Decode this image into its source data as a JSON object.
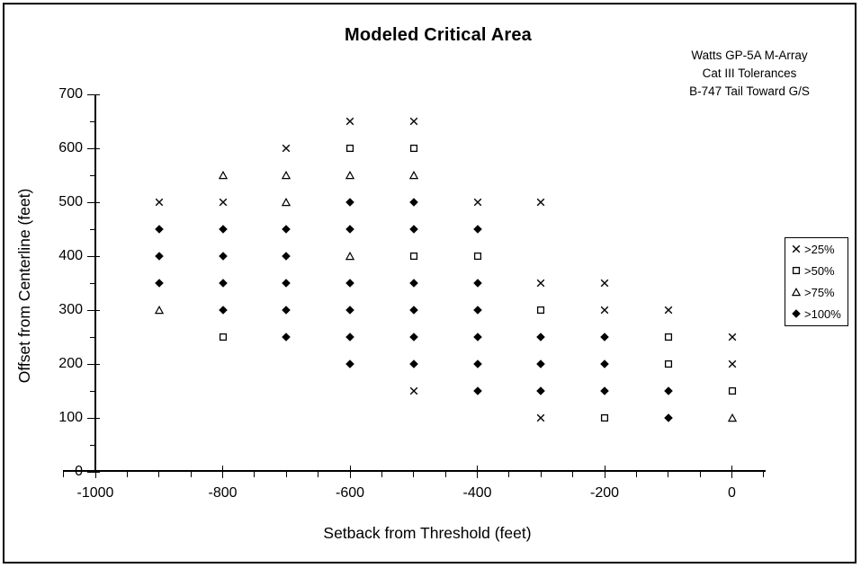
{
  "chart_data": {
    "type": "scatter",
    "title": "Modeled Critical Area",
    "xlabel": "Setback from Threshold (feet)",
    "ylabel": "Offset from Centerline (feet)",
    "annotation_lines": [
      "Watts GP-5A M-Array",
      "Cat III Tolerances",
      "B-747 Tail Toward G/S"
    ],
    "xlim": [
      -1050,
      50
    ],
    "ylim": [
      0,
      700
    ],
    "x_major_ticks": [
      -1000,
      -800,
      -600,
      -400,
      -200,
      0
    ],
    "x_minor_step": 50,
    "y_major_ticks": [
      0,
      100,
      200,
      300,
      400,
      500,
      600,
      700
    ],
    "y_minor_step": 50,
    "grid": false,
    "legend_position": "right",
    "marker_color": "#000000",
    "background_color": "#ffffff",
    "series": [
      {
        "name": ">25%",
        "marker": "cross",
        "points": [
          [
            -900,
            500
          ],
          [
            -800,
            500
          ],
          [
            -700,
            600
          ],
          [
            -600,
            650
          ],
          [
            -500,
            650
          ],
          [
            -500,
            150
          ],
          [
            -400,
            500
          ],
          [
            -300,
            500
          ],
          [
            -300,
            350
          ],
          [
            -300,
            100
          ],
          [
            -200,
            350
          ],
          [
            -200,
            300
          ],
          [
            -100,
            300
          ],
          [
            0,
            250
          ],
          [
            0,
            200
          ]
        ]
      },
      {
        "name": ">50%",
        "marker": "open-square",
        "points": [
          [
            -800,
            250
          ],
          [
            -600,
            600
          ],
          [
            -500,
            600
          ],
          [
            -500,
            400
          ],
          [
            -400,
            400
          ],
          [
            -300,
            300
          ],
          [
            -200,
            100
          ],
          [
            -100,
            250
          ],
          [
            -100,
            200
          ],
          [
            0,
            150
          ]
        ]
      },
      {
        "name": ">75%",
        "marker": "open-triangle",
        "points": [
          [
            -900,
            300
          ],
          [
            -800,
            550
          ],
          [
            -700,
            550
          ],
          [
            -700,
            500
          ],
          [
            -600,
            550
          ],
          [
            -600,
            400
          ],
          [
            -500,
            550
          ],
          [
            0,
            100
          ]
        ]
      },
      {
        "name": ">100%",
        "marker": "filled-diamond",
        "points": [
          [
            -900,
            450
          ],
          [
            -900,
            400
          ],
          [
            -900,
            350
          ],
          [
            -800,
            450
          ],
          [
            -800,
            400
          ],
          [
            -800,
            350
          ],
          [
            -800,
            300
          ],
          [
            -700,
            450
          ],
          [
            -700,
            400
          ],
          [
            -700,
            350
          ],
          [
            -700,
            300
          ],
          [
            -700,
            250
          ],
          [
            -600,
            500
          ],
          [
            -600,
            450
          ],
          [
            -600,
            350
          ],
          [
            -600,
            300
          ],
          [
            -600,
            250
          ],
          [
            -600,
            200
          ],
          [
            -500,
            500
          ],
          [
            -500,
            450
          ],
          [
            -500,
            350
          ],
          [
            -500,
            300
          ],
          [
            -500,
            250
          ],
          [
            -500,
            200
          ],
          [
            -400,
            450
          ],
          [
            -400,
            350
          ],
          [
            -400,
            300
          ],
          [
            -400,
            250
          ],
          [
            -400,
            200
          ],
          [
            -400,
            150
          ],
          [
            -300,
            250
          ],
          [
            -300,
            200
          ],
          [
            -300,
            150
          ],
          [
            -200,
            250
          ],
          [
            -200,
            200
          ],
          [
            -200,
            150
          ],
          [
            -100,
            150
          ],
          [
            -100,
            100
          ]
        ]
      }
    ]
  }
}
